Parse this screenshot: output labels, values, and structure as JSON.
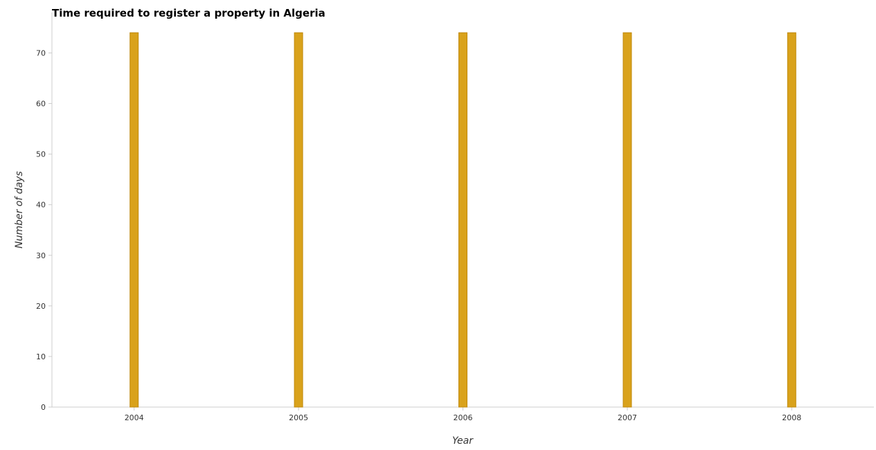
{
  "chart_data": {
    "type": "bar",
    "title": "Time required to register a property in Algeria",
    "xlabel": "Year",
    "ylabel": "Number of days",
    "categories": [
      "2004",
      "2005",
      "2006",
      "2007",
      "2008"
    ],
    "values": [
      74,
      74,
      74,
      74,
      74
    ],
    "ylim": [
      0,
      78
    ],
    "yticks": [
      0,
      10,
      20,
      30,
      40,
      50,
      60,
      70
    ],
    "grid": false,
    "legend": "none",
    "bar_color": "#d9a21b",
    "bar_stroke": "#c08a10"
  }
}
